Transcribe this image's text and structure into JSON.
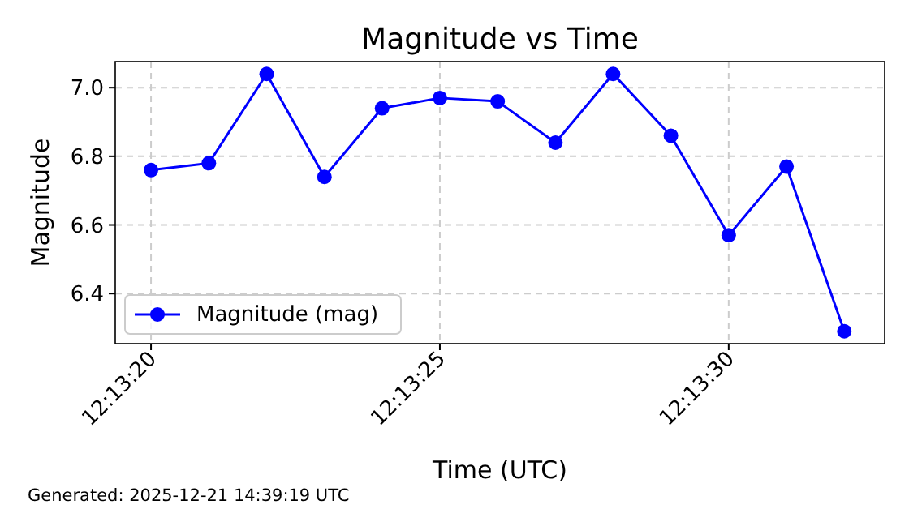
{
  "chart_data": {
    "type": "line",
    "title": "Magnitude vs Time",
    "xlabel": "Time (UTC)",
    "ylabel": "Magnitude",
    "x": [
      12.222222,
      12.2225,
      12.222778,
      12.223056,
      12.223333,
      12.223611,
      12.223889,
      12.224167,
      12.224444,
      12.224722,
      12.225,
      12.225278,
      12.225556
    ],
    "series": [
      {
        "name": "Magnitude (mag)",
        "color": "#0000ff",
        "values": [
          6.76,
          6.78,
          7.04,
          6.74,
          6.94,
          6.97,
          6.96,
          6.84,
          7.04,
          6.86,
          6.57,
          6.77,
          6.29
        ]
      }
    ],
    "xlim": [
      12.22205,
      12.22575
    ],
    "xticks": [
      {
        "value": 12.222222,
        "label": "12:13:20"
      },
      {
        "value": 12.223611,
        "label": "12:13:25"
      },
      {
        "value": 12.225,
        "label": "12:13:30"
      }
    ],
    "ylim": [
      6.254,
      7.076
    ],
    "yticks": [
      {
        "value": 6.4,
        "label": "6.4"
      },
      {
        "value": 6.6,
        "label": "6.6"
      },
      {
        "value": 6.8,
        "label": "6.8"
      },
      {
        "value": 7.0,
        "label": "7.0"
      }
    ],
    "grid": true,
    "legend": "bottom left",
    "marker": "circle",
    "line_style": "solid",
    "annotations": [
      "Generated: 2025-12-21 14:39:19 UTC"
    ]
  }
}
